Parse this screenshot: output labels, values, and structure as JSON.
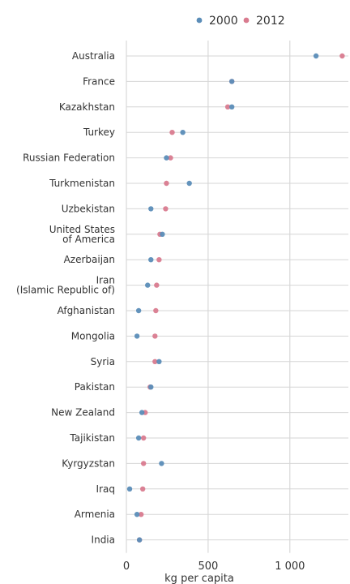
{
  "chart_data": {
    "type": "scatter",
    "subtype": "dot-plot",
    "xlabel": "kg per capita",
    "xlim": [
      0,
      1400
    ],
    "xticks": [
      0,
      500,
      1000
    ],
    "xtick_labels": [
      "0",
      "500",
      "1 000"
    ],
    "grid": true,
    "legend_position": "top",
    "categories": [
      "Australia",
      "France",
      "Kazakhstan",
      "Turkey",
      "Russian Federation",
      "Turkmenistan",
      "Uzbekistan",
      "United States of America",
      "Azerbaijan",
      "Iran (Islamic Republic of)",
      "Afghanistan",
      "Mongolia",
      "Syria",
      "Pakistan",
      "New Zealand",
      "Tajikistan",
      "Kyrgyzstan",
      "Iraq",
      "Armenia",
      "India"
    ],
    "category_lines": [
      [
        "Australia"
      ],
      [
        "France"
      ],
      [
        "Kazakhstan"
      ],
      [
        "Turkey"
      ],
      [
        "Russian Federation"
      ],
      [
        "Turkmenistan"
      ],
      [
        "Uzbekistan"
      ],
      [
        "United States",
        "of America"
      ],
      [
        "Azerbaijan"
      ],
      [
        "Iran",
        "(Islamic Republic of)"
      ],
      [
        "Afghanistan"
      ],
      [
        "Mongolia"
      ],
      [
        "Syria"
      ],
      [
        "Pakistan"
      ],
      [
        "New Zealand"
      ],
      [
        "Tajikistan"
      ],
      [
        "Kyrgyzstan"
      ],
      [
        "Iraq"
      ],
      [
        "Armenia"
      ],
      [
        "India"
      ]
    ],
    "series": [
      {
        "name": "2000",
        "color": "#5b8db8",
        "values": [
          1160,
          645,
          645,
          345,
          245,
          385,
          150,
          220,
          150,
          130,
          75,
          65,
          200,
          150,
          95,
          75,
          215,
          20,
          65,
          80
        ]
      },
      {
        "name": "2012",
        "color": "#d97b8f",
        "values": [
          1320,
          645,
          620,
          280,
          270,
          245,
          240,
          205,
          200,
          185,
          180,
          175,
          175,
          145,
          115,
          105,
          105,
          100,
          90,
          80
        ]
      }
    ]
  }
}
